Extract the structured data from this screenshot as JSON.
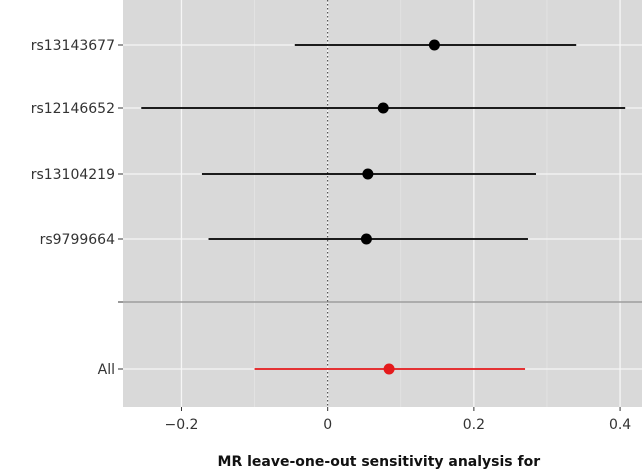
{
  "chart_data": {
    "type": "scatter",
    "subtype": "forest-plot",
    "title": "",
    "xlabel": "MR leave-one-out sensitivity analysis for",
    "ylabel": "",
    "xlim": [
      -0.28,
      0.43
    ],
    "x_ticks": [
      -0.2,
      0,
      0.2,
      0.4
    ],
    "x_tick_labels": [
      "−0.2",
      "0",
      "0.2",
      "0.4"
    ],
    "reference_line": 0,
    "grid": true,
    "panel_background": "#d9d9d9",
    "rows": [
      {
        "label": "rs13143677",
        "estimate": 0.146,
        "ci_low": -0.045,
        "ci_high": 0.34,
        "color": "#000000"
      },
      {
        "label": "rs12146652",
        "estimate": 0.076,
        "ci_low": -0.255,
        "ci_high": 0.407,
        "color": "#000000"
      },
      {
        "label": "rs13104219",
        "estimate": 0.055,
        "ci_low": -0.172,
        "ci_high": 0.285,
        "color": "#000000"
      },
      {
        "label": "rs9799664",
        "estimate": 0.053,
        "ci_low": -0.163,
        "ci_high": 0.274,
        "color": "#000000"
      },
      {
        "label": "",
        "separator": true
      },
      {
        "label": "All",
        "estimate": 0.084,
        "ci_low": -0.1,
        "ci_high": 0.27,
        "color": "#e41a1c"
      }
    ]
  }
}
